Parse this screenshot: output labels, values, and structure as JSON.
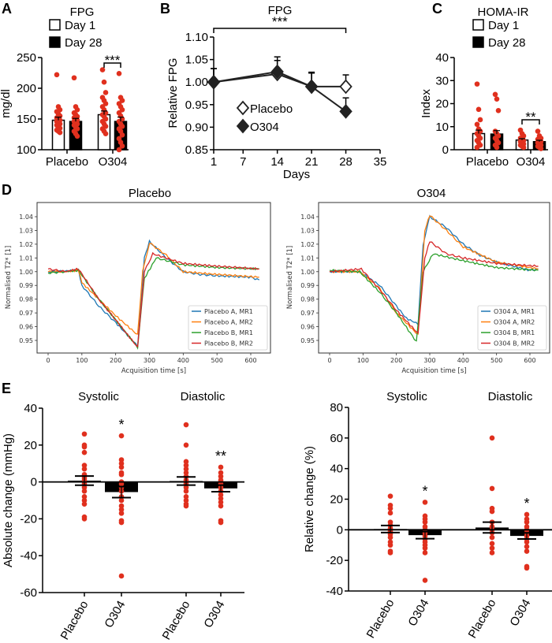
{
  "panel_letters": [
    "A",
    "B",
    "C",
    "D",
    "E"
  ],
  "chart_data": [
    {
      "id": "A",
      "type": "bar",
      "title": "FPG",
      "ylabel": "mg/dl",
      "ylim": [
        100,
        250
      ],
      "yticks": [
        100,
        150,
        200,
        250
      ],
      "groups": [
        "Placebo",
        "O304"
      ],
      "legend": [
        "Day 1",
        "Day 28"
      ],
      "bars": [
        {
          "group": "Placebo",
          "series": "Day 1",
          "mean": 148,
          "sem": 5,
          "points": [
            222,
            170,
            165,
            162,
            158,
            155,
            152,
            150,
            148,
            146,
            144,
            142,
            140,
            138,
            135,
            132,
            130,
            128
          ]
        },
        {
          "group": "Placebo",
          "series": "Day 28",
          "mean": 146,
          "sem": 5,
          "points": [
            217,
            170,
            165,
            160,
            157,
            154,
            152,
            150,
            148,
            146,
            144,
            142,
            140,
            137,
            134,
            130,
            126,
            122
          ]
        },
        {
          "group": "O304",
          "series": "Day 1",
          "mean": 157,
          "sem": 6,
          "points": [
            230,
            210,
            193,
            185,
            180,
            175,
            170,
            165,
            160,
            157,
            154,
            150,
            146,
            142,
            138,
            134,
            130,
            126
          ]
        },
        {
          "group": "O304",
          "series": "Day 28",
          "mean": 146,
          "sem": 7,
          "points": [
            224,
            185,
            180,
            175,
            170,
            165,
            160,
            155,
            150,
            146,
            142,
            138,
            134,
            130,
            124,
            118,
            112,
            106,
            100
          ]
        }
      ],
      "significance": {
        "between": "O304 Day 1 vs Day 28",
        "label": "***"
      }
    },
    {
      "id": "B",
      "type": "line",
      "title": "FPG",
      "xlabel": "Days",
      "ylabel": "Relative FPG",
      "xlim": [
        1,
        35
      ],
      "ylim": [
        0.85,
        1.1
      ],
      "xticks": [
        1,
        7,
        14,
        21,
        28,
        35
      ],
      "yticks": [
        "0.85",
        "0.90",
        "0.95",
        "1.00",
        "1.05",
        "1.10"
      ],
      "series": [
        {
          "name": "Placebo",
          "marker": "open-diamond",
          "x": [
            1,
            14,
            21,
            28
          ],
          "y": [
            1.0,
            1.018,
            0.99,
            0.99
          ],
          "err": [
            0.03,
            0.03,
            0.032,
            0.026
          ]
        },
        {
          "name": "O304",
          "marker": "filled-diamond",
          "x": [
            1,
            14,
            21,
            28
          ],
          "y": [
            1.0,
            1.023,
            0.99,
            0.935
          ],
          "err": [
            0.03,
            0.033,
            0.03,
            0.03
          ]
        }
      ],
      "significance": {
        "from": 1,
        "to": 28,
        "label": "***"
      }
    },
    {
      "id": "C",
      "type": "bar",
      "title": "HOMA-IR",
      "ylabel": "Index",
      "ylim": [
        0,
        40
      ],
      "yticks": [
        0,
        10,
        20,
        30,
        40
      ],
      "groups": [
        "Placebo",
        "O304"
      ],
      "legend": [
        "Day 1",
        "Day 28"
      ],
      "bars": [
        {
          "group": "Placebo",
          "series": "Day 1",
          "mean": 7.0,
          "sem": 1.5,
          "points": [
            28.5,
            17.5,
            13,
            11,
            9,
            8,
            7,
            6,
            5,
            4,
            3,
            2,
            1
          ]
        },
        {
          "group": "Placebo",
          "series": "Day 28",
          "mean": 6.8,
          "sem": 1.5,
          "points": [
            24,
            22,
            17,
            8,
            7,
            6,
            5,
            4,
            3,
            2,
            1
          ]
        },
        {
          "group": "O304",
          "series": "Day 1",
          "mean": 4.2,
          "sem": 0.6,
          "points": [
            8.5,
            7,
            6,
            5,
            4.5,
            4,
            3.5,
            3,
            2.5,
            2,
            1.5,
            1
          ]
        },
        {
          "group": "O304",
          "series": "Day 28",
          "mean": 3.5,
          "sem": 0.6,
          "points": [
            8,
            6,
            5,
            4.5,
            4,
            3.5,
            3,
            2.5,
            2,
            1.5,
            1,
            0.5
          ]
        }
      ],
      "significance": {
        "between": "O304 Day 1 vs Day 28",
        "label": "**"
      }
    },
    {
      "id": "D-placebo",
      "type": "line",
      "title": "Placebo",
      "xlabel": "Acquisition time [s]",
      "ylabel": "Normalised T2* [1]",
      "xlim": [
        -25,
        650
      ],
      "ylim": [
        0.938,
        1.049
      ],
      "xticks": [
        0,
        100,
        200,
        300,
        400,
        500,
        600
      ],
      "yticks": [
        "0.95",
        "0.96",
        "0.97",
        "0.98",
        "0.99",
        "1.00",
        "1.01",
        "1.02",
        "1.03",
        "1.04"
      ],
      "legend_position": "lower-right",
      "series": [
        {
          "name": "Placebo A, MR1",
          "color": "#1f77b4",
          "points": [
            [
              0,
              1.0
            ],
            [
              50,
              1.0005
            ],
            [
              90,
              1.001
            ],
            [
              100,
              0.99
            ],
            [
              150,
              0.975
            ],
            [
              200,
              0.963
            ],
            [
              265,
              0.946
            ],
            [
              285,
              1.01
            ],
            [
              300,
              1.022
            ],
            [
              350,
              1.01
            ],
            [
              400,
              1.0
            ],
            [
              450,
              0.998
            ],
            [
              500,
              0.997
            ],
            [
              600,
              0.996
            ],
            [
              625,
              0.994
            ]
          ]
        },
        {
          "name": "Placebo A, MR2",
          "color": "#ff7f0e",
          "points": [
            [
              0,
              1.0
            ],
            [
              50,
              1.0
            ],
            [
              90,
              1.001
            ],
            [
              100,
              0.992
            ],
            [
              200,
              0.968
            ],
            [
              265,
              0.954
            ],
            [
              280,
              1.0
            ],
            [
              300,
              1.021
            ],
            [
              350,
              1.012
            ],
            [
              400,
              1.0
            ],
            [
              500,
              0.998
            ],
            [
              625,
              0.996
            ]
          ]
        },
        {
          "name": "Placebo B, MR1",
          "color": "#2ca02c",
          "points": [
            [
              0,
              0.999
            ],
            [
              50,
              1.0
            ],
            [
              90,
              1.001
            ],
            [
              150,
              0.98
            ],
            [
              200,
              0.965
            ],
            [
              265,
              0.945
            ],
            [
              285,
              0.995
            ],
            [
              320,
              1.01
            ],
            [
              400,
              1.005
            ],
            [
              500,
              1.003
            ],
            [
              625,
              1.002
            ]
          ]
        },
        {
          "name": "Placebo B, MR2",
          "color": "#d62728",
          "points": [
            [
              0,
              1.002
            ],
            [
              50,
              1.0
            ],
            [
              90,
              1.002
            ],
            [
              150,
              0.98
            ],
            [
              200,
              0.965
            ],
            [
              265,
              0.945
            ],
            [
              285,
              1.0
            ],
            [
              310,
              1.013
            ],
            [
              400,
              1.006
            ],
            [
              500,
              1.004
            ],
            [
              625,
              1.002
            ]
          ]
        }
      ]
    },
    {
      "id": "D-O304",
      "type": "line",
      "title": "O304",
      "xlabel": "Acquisition time [s]",
      "ylabel": "Normalised T2* [1]",
      "xlim": [
        -25,
        650
      ],
      "ylim": [
        0.938,
        1.049
      ],
      "xticks": [
        0,
        100,
        200,
        300,
        400,
        500,
        600
      ],
      "yticks": [
        "0.95",
        "0.96",
        "0.97",
        "0.98",
        "0.99",
        "1.00",
        "1.01",
        "1.02",
        "1.03",
        "1.04"
      ],
      "legend_position": "lower-right",
      "series": [
        {
          "name": "O304 A, MR1",
          "color": "#1f77b4",
          "points": [
            [
              0,
              1.0
            ],
            [
              90,
              1.0
            ],
            [
              150,
              0.99
            ],
            [
              200,
              0.975
            ],
            [
              230,
              0.966
            ],
            [
              265,
              0.962
            ],
            [
              280,
              1.02
            ],
            [
              300,
              1.04
            ],
            [
              350,
              1.032
            ],
            [
              400,
              1.02
            ],
            [
              450,
              1.012
            ],
            [
              500,
              1.007
            ],
            [
              600,
              1.001
            ],
            [
              625,
              1.002
            ]
          ]
        },
        {
          "name": "O304 A, MR2",
          "color": "#ff7f0e",
          "points": [
            [
              0,
              1.0
            ],
            [
              90,
              1.0
            ],
            [
              150,
              0.988
            ],
            [
              200,
              0.97
            ],
            [
              265,
              0.954
            ],
            [
              285,
              1.03
            ],
            [
              300,
              1.041
            ],
            [
              350,
              1.03
            ],
            [
              400,
              1.018
            ],
            [
              500,
              1.007
            ],
            [
              625,
              1.002
            ]
          ]
        },
        {
          "name": "O304 B, MR1",
          "color": "#2ca02c",
          "points": [
            [
              0,
              1.001
            ],
            [
              90,
              1.0
            ],
            [
              150,
              0.985
            ],
            [
              200,
              0.97
            ],
            [
              260,
              0.949
            ],
            [
              280,
              1.0
            ],
            [
              310,
              1.013
            ],
            [
              400,
              1.008
            ],
            [
              500,
              1.003
            ],
            [
              625,
              1.001
            ]
          ]
        },
        {
          "name": "O304 B, MR2",
          "color": "#d62728",
          "points": [
            [
              0,
              1.0
            ],
            [
              95,
              1.002
            ],
            [
              150,
              0.987
            ],
            [
              200,
              0.972
            ],
            [
              265,
              0.955
            ],
            [
              285,
              1.01
            ],
            [
              300,
              1.022
            ],
            [
              350,
              1.013
            ],
            [
              400,
              1.01
            ],
            [
              500,
              1.006
            ],
            [
              625,
              1.004
            ]
          ]
        }
      ]
    },
    {
      "id": "E-absolute",
      "type": "bar",
      "ylabel": "Absolute change (mmHg)",
      "ylim": [
        -60,
        40
      ],
      "yticks": [
        -60,
        -40,
        -20,
        0,
        20,
        40
      ],
      "sections": [
        "Systolic",
        "Diastolic"
      ],
      "bars": [
        {
          "section": "Systolic",
          "group": "Placebo",
          "mean": 0.7,
          "sem": 2.5,
          "points": [
            26,
            20,
            19,
            16,
            9,
            7,
            4,
            3,
            2,
            1,
            0,
            -1,
            -3,
            -5,
            -8,
            -10,
            -12,
            -19,
            -20
          ]
        },
        {
          "section": "Systolic",
          "group": "O304",
          "mean": -5.5,
          "sem": 3,
          "sig": "*",
          "points": [
            25,
            12,
            10,
            8,
            5,
            4,
            0,
            -1,
            -3,
            -5,
            -8,
            -10,
            -13,
            -15,
            -17,
            -21,
            -22,
            -51
          ]
        },
        {
          "section": "Diastolic",
          "group": "Placebo",
          "mean": 0.5,
          "sem": 2.2,
          "points": [
            31,
            20,
            11,
            9,
            7,
            5,
            3,
            1,
            0,
            -1,
            -3,
            -5,
            -8,
            -10,
            -12,
            -13
          ]
        },
        {
          "section": "Diastolic",
          "group": "O304",
          "mean": -3.5,
          "sem": 1.8,
          "sig": "**",
          "points": [
            8,
            5,
            3,
            1,
            0,
            -1,
            -3,
            -5,
            -7,
            -9,
            -11,
            -13,
            -21,
            -22
          ]
        }
      ]
    },
    {
      "id": "E-relative",
      "type": "bar",
      "ylabel": "Relative change (%)",
      "ylim": [
        -40,
        80
      ],
      "yticks": [
        -40,
        -20,
        0,
        20,
        40,
        60,
        80
      ],
      "sections": [
        "Systolic",
        "Diastolic"
      ],
      "bars": [
        {
          "section": "Systolic",
          "group": "Placebo",
          "mean": 0.5,
          "sem": 2.3,
          "points": [
            22,
            16,
            14,
            11,
            5,
            3,
            1,
            0,
            -1,
            -3,
            -5,
            -8,
            -10,
            -14,
            -15
          ]
        },
        {
          "section": "Systolic",
          "group": "O304",
          "mean": -3.5,
          "sem": 2.3,
          "sig": "*",
          "points": [
            18,
            9,
            7,
            5,
            2,
            0,
            -2,
            -4,
            -6,
            -8,
            -10,
            -12,
            -15,
            -33
          ]
        },
        {
          "section": "Diastolic",
          "group": "Placebo",
          "mean": 1.5,
          "sem": 3.5,
          "points": [
            60,
            27,
            14,
            12,
            5,
            2,
            0,
            -2,
            -5,
            -9,
            -12,
            -15
          ]
        },
        {
          "section": "Diastolic",
          "group": "O304",
          "mean": -4,
          "sem": 2,
          "sig": "*",
          "points": [
            10,
            7,
            5,
            2,
            0,
            -2,
            -4,
            -6,
            -8,
            -11,
            -14,
            -24,
            -25
          ]
        }
      ]
    }
  ],
  "colors": {
    "dots": "#e0301e",
    "bars": "#000000",
    "open_bar": "#ffffff"
  }
}
